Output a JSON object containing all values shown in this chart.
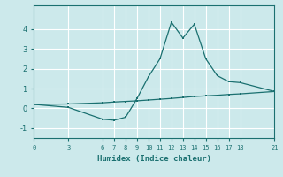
{
  "xlabel": "Humidex (Indice chaleur)",
  "background_color": "#cce9eb",
  "grid_color": "#ffffff",
  "line_color": "#1a7070",
  "x_ticks": [
    0,
    3,
    6,
    7,
    8,
    9,
    10,
    11,
    12,
    13,
    14,
    15,
    16,
    17,
    18,
    21
  ],
  "ylim": [
    -1.5,
    5.2
  ],
  "xlim": [
    0,
    21
  ],
  "series1_x": [
    0,
    3,
    6,
    7,
    8,
    9,
    10,
    11,
    12,
    13,
    14,
    15,
    16,
    17,
    18,
    21
  ],
  "series1_y": [
    0.2,
    0.05,
    -0.55,
    -0.6,
    -0.45,
    0.5,
    1.6,
    2.5,
    4.35,
    3.55,
    4.25,
    2.5,
    1.65,
    1.35,
    1.3,
    0.85
  ],
  "series2_x": [
    0,
    3,
    6,
    7,
    8,
    9,
    10,
    11,
    12,
    13,
    14,
    15,
    16,
    17,
    18,
    21
  ],
  "series2_y": [
    0.2,
    0.22,
    0.28,
    0.32,
    0.35,
    0.38,
    0.42,
    0.46,
    0.5,
    0.55,
    0.6,
    0.63,
    0.66,
    0.7,
    0.73,
    0.85
  ],
  "yticks": [
    -1,
    0,
    1,
    2,
    3,
    4
  ],
  "ytick_labels": [
    "-1",
    "0",
    "1",
    "2",
    "3",
    "4"
  ]
}
